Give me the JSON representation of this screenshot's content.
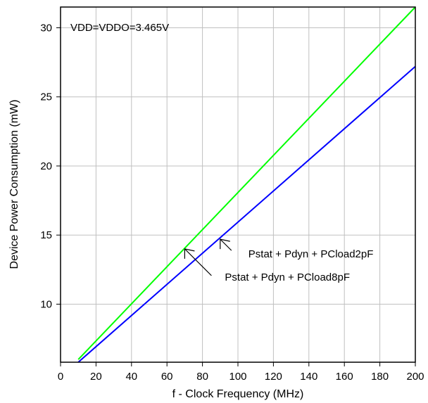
{
  "chart_data": {
    "type": "line",
    "annotation_top": "VDD=VDDO=3.465V",
    "xlabel": "f - Clock Frequency (MHz)",
    "ylabel": "Device Power Consumption (mW)",
    "xlim": [
      0,
      200
    ],
    "ylim": [
      5.8,
      31.5
    ],
    "xticks": [
      0,
      20,
      40,
      60,
      80,
      100,
      120,
      140,
      160,
      180,
      200
    ],
    "yticks": [
      10,
      15,
      20,
      25,
      30
    ],
    "grid": true,
    "series": [
      {
        "name": "Pstat + Pdyn + PCload8pF",
        "color": "#00ff00",
        "x": [
          10,
          200
        ],
        "y": [
          6.0,
          31.5
        ]
      },
      {
        "name": "Pstat + Pdyn + PCload2pF",
        "color": "#0000ff",
        "x": [
          10,
          200
        ],
        "y": [
          5.8,
          27.2
        ]
      }
    ],
    "annotations": [
      {
        "text": "Pstat + Pdyn + PCload2pF",
        "arrow_to_x": 90,
        "arrow_to_y": 14.7,
        "series": 1
      },
      {
        "text": "Pstat + Pdyn + PCload8pF",
        "arrow_to_x": 70,
        "arrow_to_y": 14.0,
        "series": 0
      }
    ]
  }
}
